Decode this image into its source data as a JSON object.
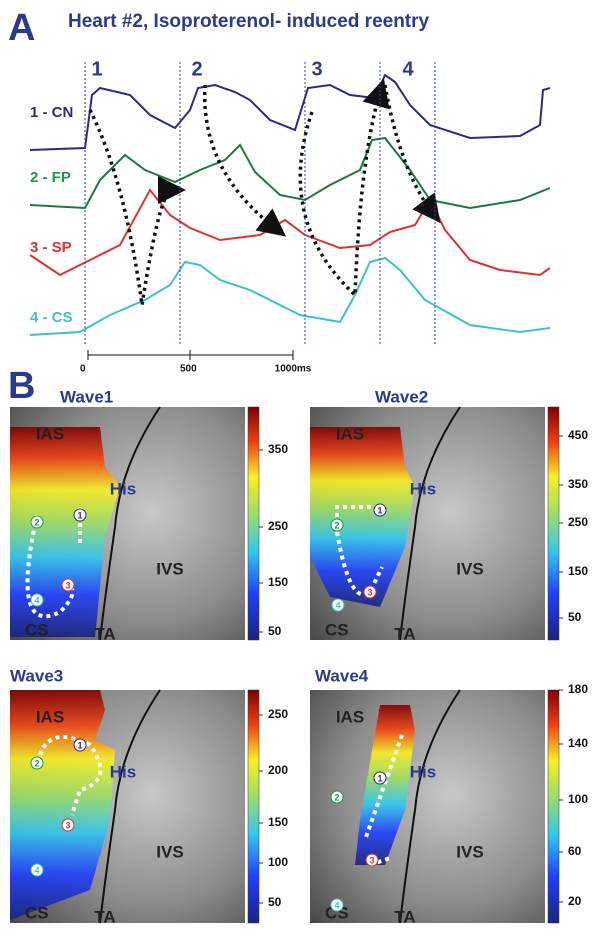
{
  "panel_a": {
    "letter": "A",
    "title": "Heart #2, Isoproterenol- induced reentry",
    "beat_labels": [
      "1",
      "2",
      "3",
      "4"
    ],
    "trace_labels": [
      "1 - CN",
      "2 - FP",
      "3 - SP",
      "4 - CS"
    ],
    "time_axis": [
      "0",
      "500",
      "1000ms"
    ]
  },
  "panel_b": {
    "letter": "B",
    "maps": [
      {
        "title": "Wave1",
        "colorbar_ticks": [
          "350",
          "250",
          "150",
          "50"
        ]
      },
      {
        "title": "Wave2",
        "colorbar_ticks": [
          "450",
          "350",
          "250",
          "150",
          "50"
        ]
      },
      {
        "title": "Wave3",
        "colorbar_ticks": [
          "250",
          "200",
          "150",
          "100",
          "50"
        ]
      },
      {
        "title": "Wave4",
        "colorbar_ticks": [
          "180",
          "140",
          "100",
          "60",
          "20"
        ]
      }
    ],
    "anatomy_labels": [
      "IAS",
      "His",
      "IVS",
      "CS",
      "TA"
    ],
    "site_markers": [
      "1",
      "2",
      "3",
      "4"
    ]
  }
}
